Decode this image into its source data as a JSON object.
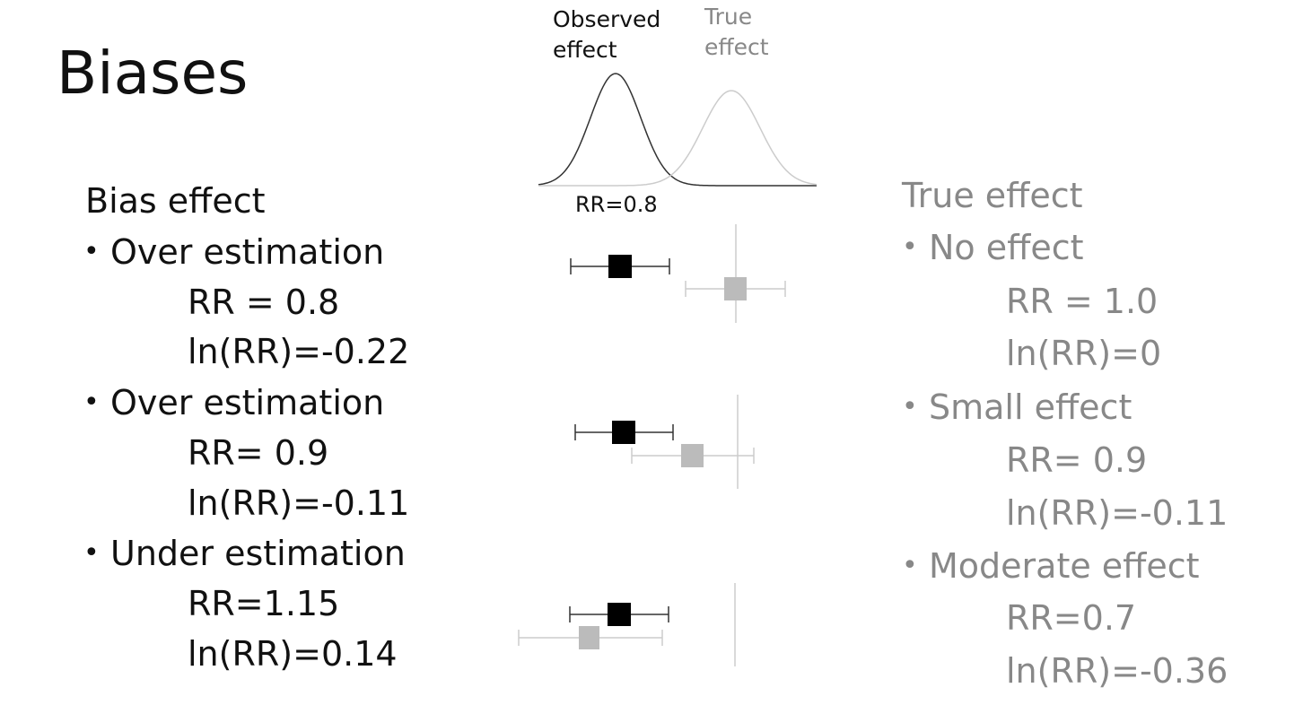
{
  "title": "Biases",
  "figure": {
    "observed_label": [
      "Observed",
      "effect"
    ],
    "true_label": [
      "True",
      "effect"
    ],
    "rr_label": "RR=0.8"
  },
  "left": {
    "heading": "Bias effect",
    "items": [
      {
        "label": "Over estimation",
        "lines": [
          "RR = 0.8",
          "ln(RR)=-0.22"
        ]
      },
      {
        "label": "Over estimation",
        "lines": [
          "RR= 0.9",
          "ln(RR)=-0.11"
        ]
      },
      {
        "label": "Under estimation",
        "lines": [
          "RR=1.15",
          "ln(RR)=0.14"
        ]
      }
    ]
  },
  "right": {
    "heading": "True effect",
    "items": [
      {
        "label": "No effect",
        "lines": [
          "RR = 1.0",
          "ln(RR)=0"
        ]
      },
      {
        "label": "Small effect",
        "lines": [
          "RR= 0.9",
          "ln(RR)=-0.11"
        ]
      },
      {
        "label": "Moderate effect",
        "lines": [
          "RR=0.7",
          "ln(RR)=-0.36"
        ]
      }
    ]
  }
}
